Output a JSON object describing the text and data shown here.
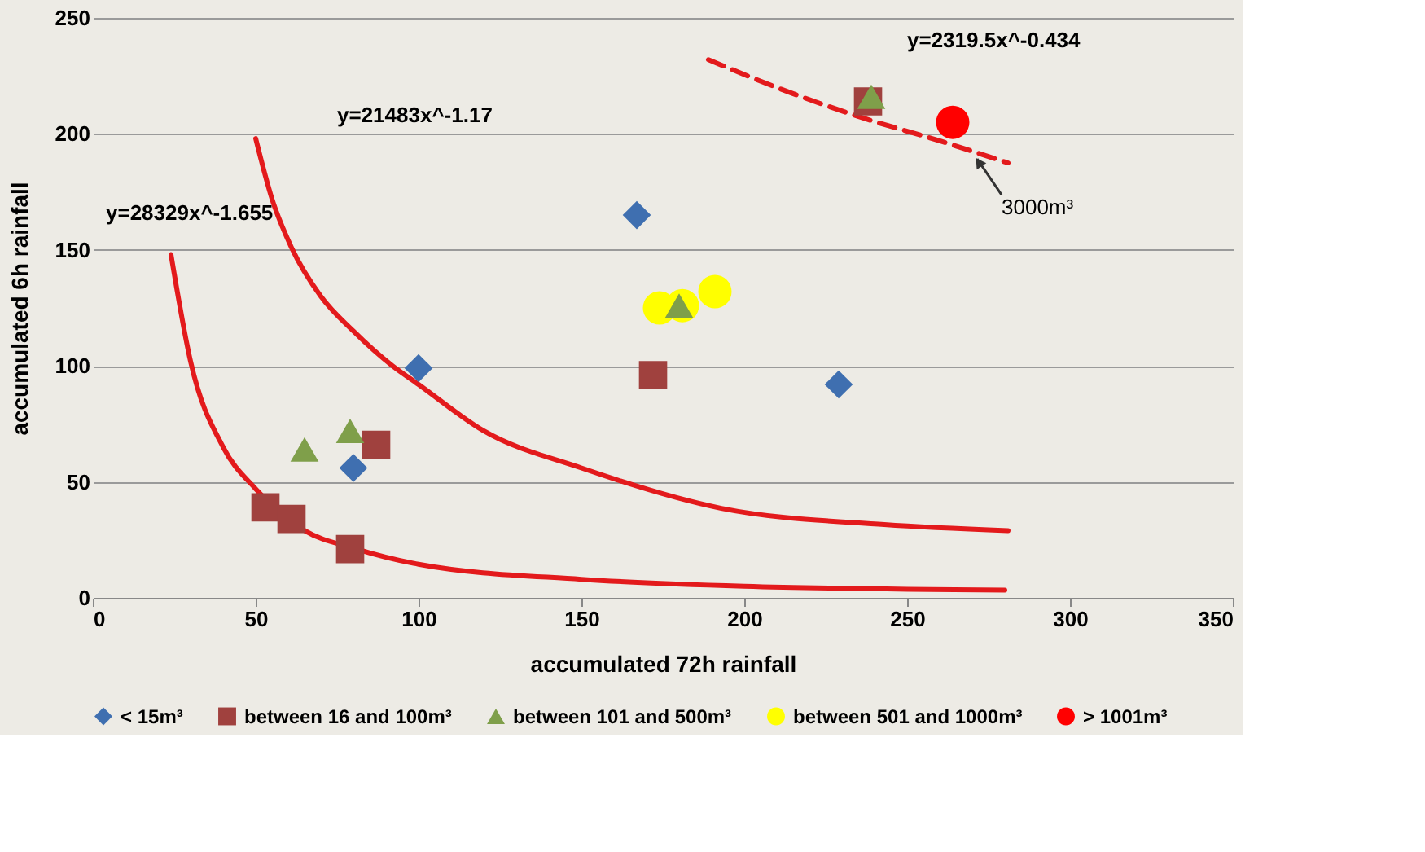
{
  "chart_data": {
    "type": "scatter",
    "xlabel": "accumulated 72h rainfall",
    "ylabel": "accumulated 6h rainfall",
    "xlim": [
      0,
      350
    ],
    "xticks": [
      0,
      50,
      100,
      150,
      200,
      250,
      300,
      350
    ],
    "ylim": [
      0,
      250
    ],
    "yticks": [
      0,
      50,
      100,
      150,
      200,
      250
    ],
    "grid": "y",
    "legend": "bottom",
    "series": [
      {
        "name": "< 15m³",
        "marker": "diamond",
        "color": "#3f6fb0",
        "x": [
          80,
          100,
          167,
          229
        ],
        "values": [
          56,
          99,
          165,
          92
        ]
      },
      {
        "name": "between 16 and 100m³",
        "marker": "square",
        "color": "#a0413e",
        "x": [
          53,
          61,
          79,
          87,
          172,
          238
        ],
        "values": [
          39,
          34,
          21,
          66,
          96,
          214
        ]
      },
      {
        "name": "between 101 and 500m³",
        "marker": "triangle",
        "color": "#7f9f4a",
        "x": [
          65,
          79,
          180,
          239
        ],
        "values": [
          64,
          72,
          126,
          216
        ]
      },
      {
        "name": "between 501 and 1000m³",
        "marker": "circle",
        "color": "#ffff00",
        "x": [
          174,
          181,
          191
        ],
        "values": [
          125,
          126,
          132
        ]
      },
      {
        "name": "> 1001m³",
        "marker": "circle",
        "color": "#ff0000",
        "x": [
          264
        ],
        "values": [
          205
        ]
      },
      {
        "type": "line",
        "line_style": "solid",
        "color": "#e31a1c",
        "x": [
          24,
          30,
          40,
          50,
          65,
          80,
          100,
          150,
          200,
          280
        ],
        "values": [
          148,
          102,
          65,
          47,
          29,
          21.5,
          14.5,
          8,
          5,
          3.3
        ]
      },
      {
        "type": "line",
        "line_style": "solid",
        "color": "#e31a1c",
        "x": [
          50,
          55,
          61,
          70,
          80,
          92,
          100,
          120,
          150,
          193,
          243,
          281
        ],
        "values": [
          198,
          172,
          151,
          130,
          115,
          100,
          92,
          72,
          56,
          38.6,
          31.6,
          29
        ]
      },
      {
        "type": "line",
        "line_style": "dashed",
        "color": "#e31a1c",
        "x": [
          189,
          210,
          234,
          260,
          281
        ],
        "values": [
          232,
          220,
          208,
          197,
          187.5
        ]
      }
    ],
    "annotations": [
      "y=28329x^-1.655",
      "y=21483x^-1.17",
      "y=2319.5x^-0.434",
      {
        "text": "3000m³",
        "x": 270,
        "y": 192
      }
    ]
  }
}
